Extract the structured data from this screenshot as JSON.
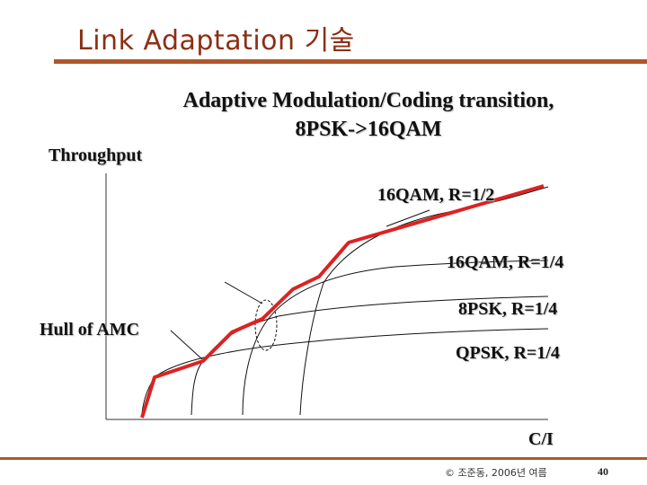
{
  "slide": {
    "title": "Link Adaptation 기술",
    "heading_line1": "Adaptive Modulation/Coding transition,",
    "heading_line2": "8PSK->16QAM",
    "footer_copyright": "© 조준동, 2006년 여름",
    "page_number": "40"
  },
  "chart_data": {
    "type": "line",
    "title": "Adaptive Modulation/Coding transition, 8PSK->16QAM",
    "ylabel": "Throughput",
    "xlabel": "C/I",
    "grid": false,
    "series": [
      {
        "name": "16QAM, R=1/2"
      },
      {
        "name": "16QAM, R=1/4"
      },
      {
        "name": "8PSK, R=1/4"
      },
      {
        "name": "QPSK, R=1/4"
      },
      {
        "name": "Hull of AMC"
      }
    ],
    "colors": {
      "curves": "#111111",
      "hull": "#dd2222"
    }
  }
}
